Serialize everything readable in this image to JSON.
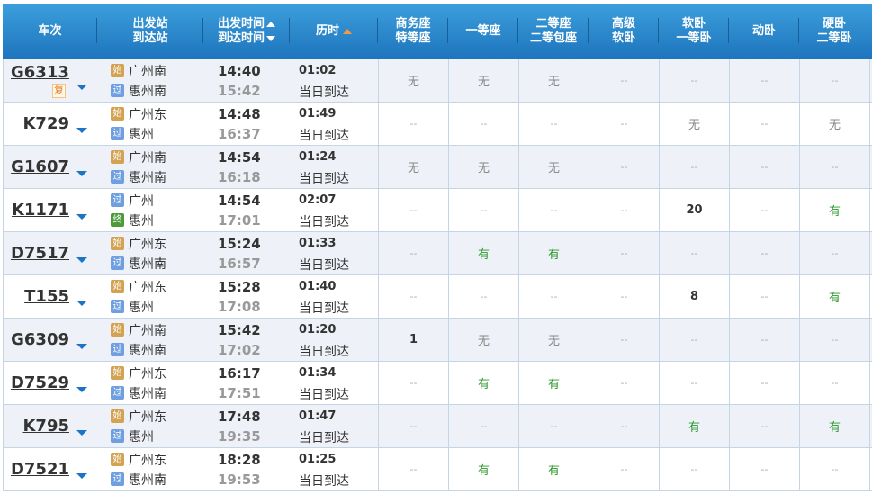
{
  "colors": {
    "header_top": "#3c9fdc",
    "header_bottom": "#1e74bd",
    "start_icon": "#d3a252",
    "pass_icon": "#6f9fe0",
    "end_icon": "#4d9a3a",
    "available": "#2a9a2a"
  },
  "headers": {
    "train": "车次",
    "station_from": "出发站",
    "station_to": "到达站",
    "time_dep": "出发时间",
    "time_arr": "到达时间",
    "duration": "历时",
    "seats": [
      [
        "商务座",
        "特等座"
      ],
      [
        "一等座",
        ""
      ],
      [
        "二等座",
        "二等包座"
      ],
      [
        "高级",
        "软卧"
      ],
      [
        "软卧",
        "一等卧"
      ],
      [
        "动卧",
        ""
      ],
      [
        "硬卧",
        "二等卧"
      ]
    ]
  },
  "rows": [
    {
      "train": "G6313",
      "badge": "复",
      "from_tag": "始",
      "from": "广州南",
      "to_tag": "过",
      "to": "惠州南",
      "dep": "14:40",
      "arr": "15:42",
      "dur": "01:02",
      "arrive_note": "当日到达",
      "seats": [
        "无",
        "无",
        "无",
        "--",
        "--",
        "--",
        "--"
      ]
    },
    {
      "train": "K729",
      "from_tag": "始",
      "from": "广州东",
      "to_tag": "过",
      "to": "惠州",
      "dep": "14:48",
      "arr": "16:37",
      "dur": "01:49",
      "arrive_note": "当日到达",
      "seats": [
        "--",
        "--",
        "--",
        "--",
        "无",
        "--",
        "无"
      ]
    },
    {
      "train": "G1607",
      "from_tag": "始",
      "from": "广州南",
      "to_tag": "过",
      "to": "惠州南",
      "dep": "14:54",
      "arr": "16:18",
      "dur": "01:24",
      "arrive_note": "当日到达",
      "seats": [
        "无",
        "无",
        "无",
        "--",
        "--",
        "--",
        "--"
      ]
    },
    {
      "train": "K1171",
      "from_tag": "过",
      "from": "广州",
      "to_tag": "终",
      "to": "惠州",
      "dep": "14:54",
      "arr": "17:01",
      "dur": "02:07",
      "arrive_note": "当日到达",
      "seats": [
        "--",
        "--",
        "--",
        "--",
        "20",
        "--",
        "有"
      ]
    },
    {
      "train": "D7517",
      "from_tag": "始",
      "from": "广州东",
      "to_tag": "过",
      "to": "惠州南",
      "dep": "15:24",
      "arr": "16:57",
      "dur": "01:33",
      "arrive_note": "当日到达",
      "seats": [
        "--",
        "有",
        "有",
        "--",
        "--",
        "--",
        "--"
      ]
    },
    {
      "train": "T155",
      "from_tag": "始",
      "from": "广州东",
      "to_tag": "过",
      "to": "惠州",
      "dep": "15:28",
      "arr": "17:08",
      "dur": "01:40",
      "arrive_note": "当日到达",
      "seats": [
        "--",
        "--",
        "--",
        "--",
        "8",
        "--",
        "有"
      ]
    },
    {
      "train": "G6309",
      "from_tag": "始",
      "from": "广州南",
      "to_tag": "过",
      "to": "惠州南",
      "dep": "15:42",
      "arr": "17:02",
      "dur": "01:20",
      "arrive_note": "当日到达",
      "seats": [
        "1",
        "无",
        "无",
        "--",
        "--",
        "--",
        "--"
      ]
    },
    {
      "train": "D7529",
      "from_tag": "始",
      "from": "广州东",
      "to_tag": "过",
      "to": "惠州南",
      "dep": "16:17",
      "arr": "17:51",
      "dur": "01:34",
      "arrive_note": "当日到达",
      "seats": [
        "--",
        "有",
        "有",
        "--",
        "--",
        "--",
        "--"
      ]
    },
    {
      "train": "K795",
      "from_tag": "始",
      "from": "广州东",
      "to_tag": "过",
      "to": "惠州",
      "dep": "17:48",
      "arr": "19:35",
      "dur": "01:47",
      "arrive_note": "当日到达",
      "seats": [
        "--",
        "--",
        "--",
        "--",
        "有",
        "--",
        "有"
      ]
    },
    {
      "train": "D7521",
      "from_tag": "始",
      "from": "广州东",
      "to_tag": "过",
      "to": "惠州南",
      "dep": "18:28",
      "arr": "19:53",
      "dur": "01:25",
      "arrive_note": "当日到达",
      "seats": [
        "--",
        "有",
        "有",
        "--",
        "--",
        "--",
        "--"
      ]
    }
  ]
}
